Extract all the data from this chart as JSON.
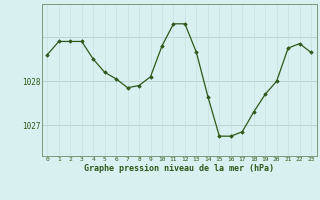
{
  "x": [
    0,
    1,
    2,
    3,
    4,
    5,
    6,
    7,
    8,
    9,
    10,
    11,
    12,
    13,
    14,
    15,
    16,
    17,
    18,
    19,
    20,
    21,
    22,
    23
  ],
  "y": [
    1028.6,
    1028.9,
    1028.9,
    1028.9,
    1028.5,
    1028.2,
    1028.05,
    1027.85,
    1027.9,
    1028.1,
    1028.8,
    1029.3,
    1029.3,
    1028.65,
    1027.65,
    1026.75,
    1026.75,
    1026.85,
    1027.3,
    1027.7,
    1028.0,
    1028.75,
    1028.85,
    1028.65
  ],
  "line_color": "#2d5a1b",
  "marker_color": "#2d5a1b",
  "bg_color": "#d8f0f0",
  "grid_color_major": "#b8cece",
  "grid_color_minor": "#c8e0e0",
  "xlabel": "Graphe pression niveau de la mer (hPa)",
  "ylim_min": 1026.3,
  "ylim_max": 1029.75,
  "xlim_min": -0.5,
  "xlim_max": 23.5
}
